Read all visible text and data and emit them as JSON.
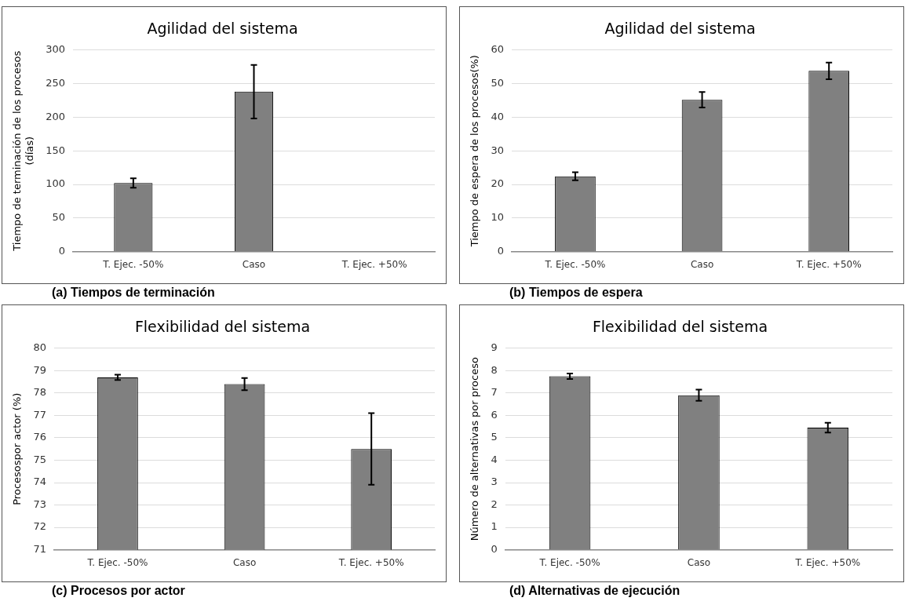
{
  "chart_data": [
    {
      "type": "bar",
      "title": "Agilidad del sistema",
      "ylabel": "Tiempo de terminación de los procesos\n(días)",
      "categories": [
        "T. Ejec. -50%",
        "Caso",
        "T. Ejec. +50%"
      ],
      "values": [
        102,
        238,
        null
      ],
      "errors": [
        7,
        40,
        null
      ],
      "color": "#808080",
      "ylim": [
        0,
        300
      ],
      "yticks": [
        0,
        50,
        100,
        150,
        200,
        250,
        300
      ],
      "grid": "y",
      "annotations": [
        "(a) Tiempos de terminación"
      ]
    },
    {
      "type": "bar",
      "title": "Agilidad del sistema",
      "ylabel": "Tiempo de espera de los procesos(%)",
      "categories": [
        "T. Ejec. -50%",
        "Caso",
        "T. Ejec. +50%"
      ],
      "values": [
        22.4,
        45.2,
        53.8
      ],
      "errors": [
        1.2,
        2.3,
        2.5
      ],
      "color": "#808080",
      "ylim": [
        0,
        60
      ],
      "yticks": [
        0,
        10,
        20,
        30,
        40,
        50,
        60
      ],
      "grid": "y",
      "annotations": [
        "(b) Tiempos de espera"
      ]
    },
    {
      "type": "bar",
      "title": "Flexibilidad del sistema",
      "ylabel": "Procesospor actor (%)",
      "categories": [
        "T. Ejec. -50%",
        "Caso",
        "T. Ejec. +50%"
      ],
      "values": [
        78.7,
        78.4,
        75.5
      ],
      "errors": [
        0.12,
        0.27,
        1.6
      ],
      "color": "#808080",
      "ylim": [
        71,
        80
      ],
      "yticks": [
        71,
        72,
        73,
        74,
        75,
        76,
        77,
        78,
        79,
        80
      ],
      "grid": "y",
      "annotations": [
        "(c) Procesos por actor"
      ]
    },
    {
      "type": "bar",
      "title": "Flexibilidad del sistema",
      "ylabel": "Número de alternativas por proceso",
      "categories": [
        "T. Ejec. -50%",
        "Caso",
        "T. Ejec. +50%"
      ],
      "values": [
        7.75,
        6.9,
        5.45
      ],
      "errors": [
        0.12,
        0.25,
        0.22
      ],
      "color": "#808080",
      "ylim": [
        0,
        9
      ],
      "yticks": [
        0,
        1,
        2,
        3,
        4,
        5,
        6,
        7,
        8,
        9
      ],
      "grid": "y",
      "annotations": [
        "(d) Alternativas de ejecución"
      ]
    }
  ]
}
